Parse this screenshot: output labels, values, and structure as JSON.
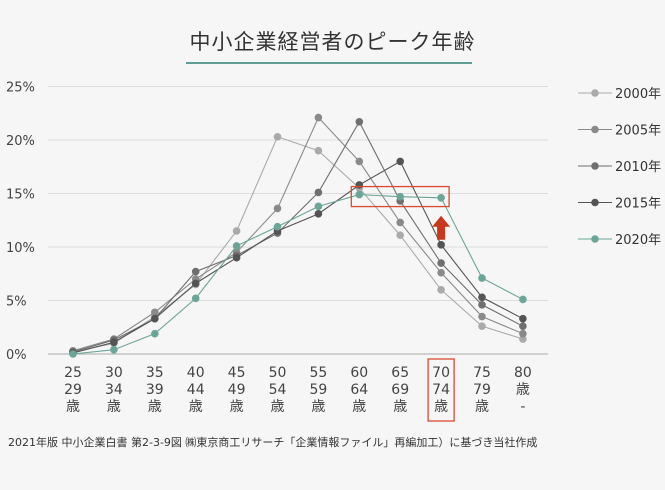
{
  "title": "中小企業経営者のピーク年齢",
  "source": "2021年版 中小企業白書 第2-3-9図 ㈱東京商工リサーチ「企業情報ファイル」再編加工）に基づき当社作成",
  "chart_data": {
    "type": "line",
    "title": "中小企業経営者のピーク年齢",
    "xlabel": "",
    "ylabel": "",
    "ylim": [
      0,
      25
    ],
    "yticks": [
      "0%",
      "5%",
      "10%",
      "15%",
      "20%",
      "25%"
    ],
    "categories": [
      [
        "25",
        "29",
        "歳"
      ],
      [
        "30",
        "34",
        "歳"
      ],
      [
        "35",
        "39",
        "歳"
      ],
      [
        "40",
        "44",
        "歳"
      ],
      [
        "45",
        "49",
        "歳"
      ],
      [
        "50",
        "54",
        "歳"
      ],
      [
        "55",
        "59",
        "歳"
      ],
      [
        "60",
        "64",
        "歳"
      ],
      [
        "65",
        "69",
        "歳"
      ],
      [
        "70",
        "74",
        "歳"
      ],
      [
        "75",
        "79",
        "歳"
      ],
      [
        "80",
        "歳",
        "-"
      ]
    ],
    "series": [
      {
        "name": "2000年",
        "color": "#aaaaaa",
        "values": [
          0.2,
          1.0,
          3.5,
          6.5,
          11.5,
          20.3,
          19.0,
          15.5,
          11.1,
          6.0,
          2.6,
          1.4
        ]
      },
      {
        "name": "2005年",
        "color": "#8a8a8a",
        "values": [
          0.3,
          1.4,
          3.9,
          7.0,
          9.5,
          13.6,
          22.1,
          18.0,
          12.3,
          7.6,
          3.5,
          1.9
        ]
      },
      {
        "name": "2010年",
        "color": "#6f6f6f",
        "values": [
          0.2,
          1.3,
          3.3,
          7.7,
          9.2,
          11.3,
          15.1,
          21.7,
          14.3,
          8.5,
          4.6,
          2.6
        ]
      },
      {
        "name": "2015年",
        "color": "#545454",
        "values": [
          0.1,
          1.1,
          3.3,
          6.6,
          9.0,
          11.5,
          13.1,
          15.8,
          18.0,
          10.2,
          5.3,
          3.3
        ]
      },
      {
        "name": "2020年",
        "color": "#6ba597",
        "values": [
          0.0,
          0.4,
          1.9,
          5.2,
          10.1,
          11.9,
          13.8,
          14.9,
          14.7,
          14.6,
          7.1,
          5.1
        ]
      }
    ],
    "highlight_box_color": "#d94a2e",
    "arrow_color": "#c8381a",
    "legend_position": "right",
    "grid": true
  }
}
